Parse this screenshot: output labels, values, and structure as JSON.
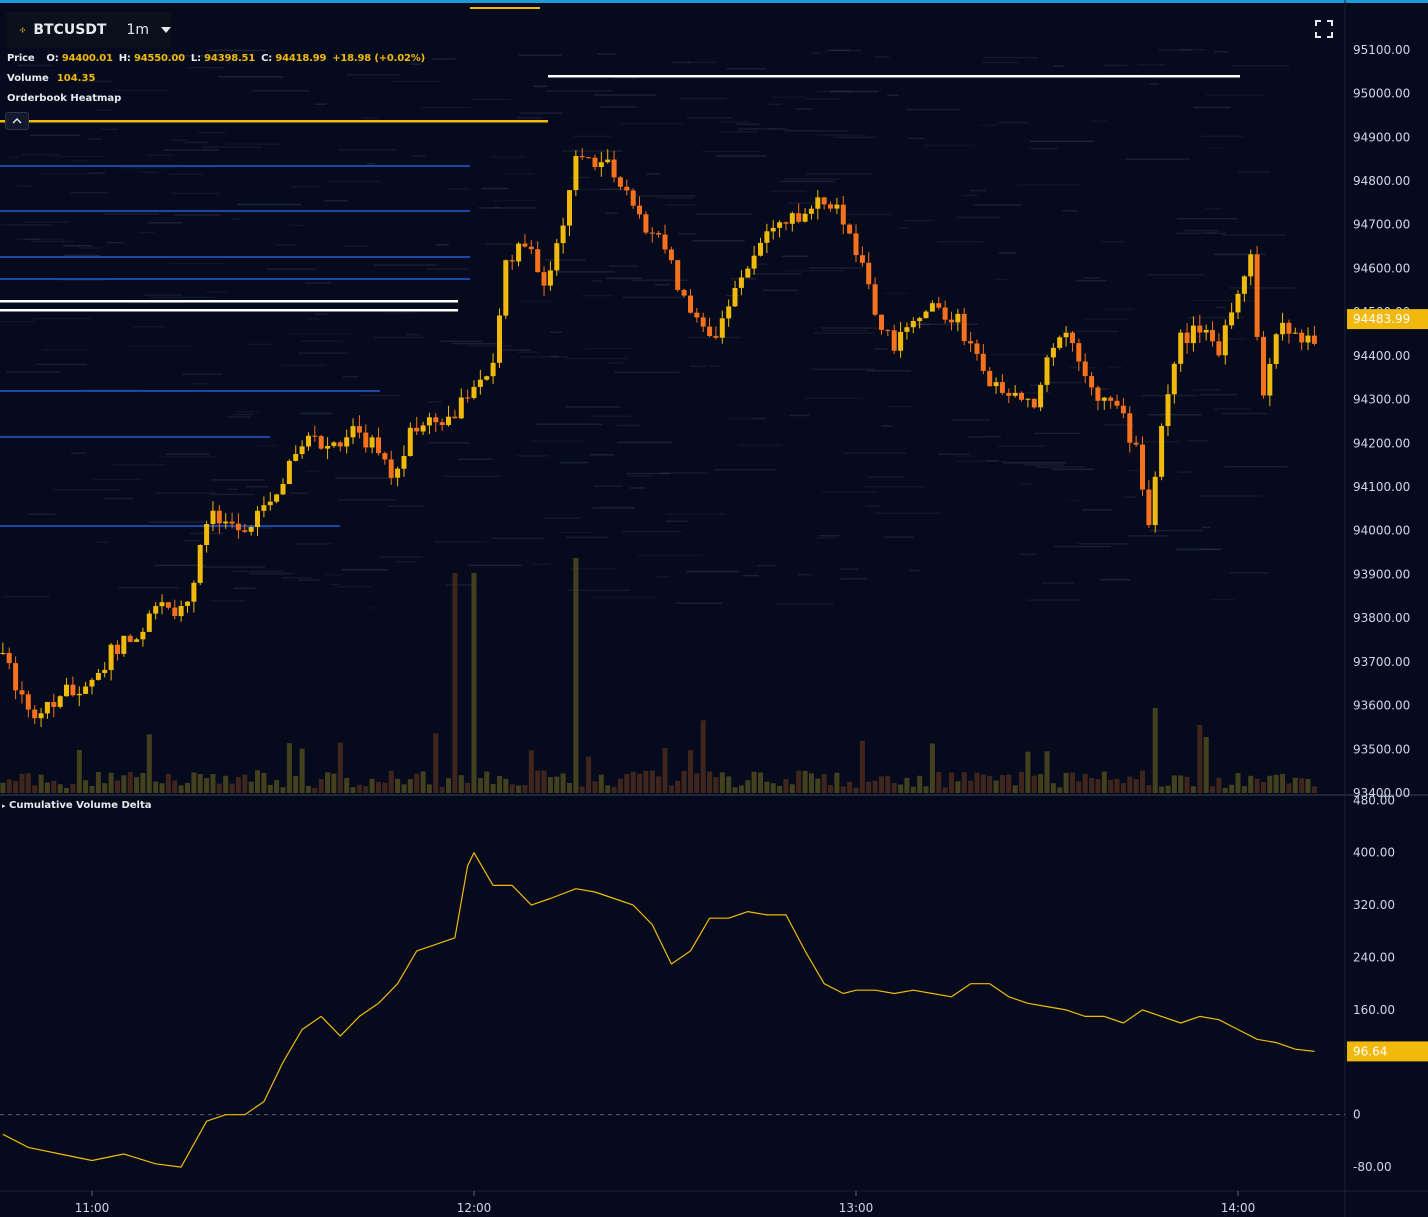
{
  "header": {
    "symbol": "BTCUSDT",
    "interval": "1m",
    "price_label": "Price",
    "ohlc": {
      "o_label": "O:",
      "o": "94400.01",
      "h_label": "H:",
      "h": "94550.00",
      "l_label": "L:",
      "l": "94398.51",
      "c_label": "C:",
      "c": "94418.99",
      "change": "+18.98 (+0.02%)"
    },
    "volume_label": "Volume",
    "volume_value": "104.35",
    "heatmap_label": "Orderbook Heatmap"
  },
  "cvd_label": "Cumulative Volume Delta",
  "icons": {
    "logo": "binance-logo-icon",
    "collapse": "chevron-up-icon",
    "fullscreen": "fullscreen-icon",
    "interval_dropdown": "caret-down-icon"
  },
  "colors": {
    "background": "#050b1c",
    "up": "#f0b90b",
    "down": "#f6711d",
    "accent": "#f0b90b",
    "axis_text": "#cfd6e6",
    "top_bar": "#1c9bd6"
  },
  "chart_data": [
    {
      "type": "candlestick",
      "title": "",
      "y_axis_ticks": [
        "95100.00",
        "95000.00",
        "94900.00",
        "94800.00",
        "94700.00",
        "94600.00",
        "94500.00",
        "94400.00",
        "94300.00",
        "94200.00",
        "94100.00",
        "94000.00",
        "93900.00",
        "93800.00",
        "93700.00",
        "93600.00",
        "93500.00",
        "93400.00"
      ],
      "ylim": [
        93400,
        95150
      ],
      "current_price": "94483.99",
      "x_ticks": [
        "11:00",
        "12:00",
        "13:00",
        "14:00"
      ],
      "x_range": [
        "10:46",
        "14:13"
      ],
      "close_path": [
        [
          "10:46",
          93720
        ],
        [
          "10:48",
          93650
        ],
        [
          "10:50",
          93580
        ],
        [
          "10:53",
          93610
        ],
        [
          "10:56",
          93630
        ],
        [
          "11:00",
          93660
        ],
        [
          "11:03",
          93720
        ],
        [
          "11:07",
          93760
        ],
        [
          "11:10",
          93820
        ],
        [
          "11:14",
          93820
        ],
        [
          "11:16",
          93880
        ],
        [
          "11:18",
          94030
        ],
        [
          "11:21",
          94020
        ],
        [
          "11:24",
          94000
        ],
        [
          "11:27",
          94040
        ],
        [
          "11:30",
          94120
        ],
        [
          "11:34",
          94200
        ],
        [
          "11:38",
          94200
        ],
        [
          "11:41",
          94230
        ],
        [
          "11:44",
          94200
        ],
        [
          "11:47",
          94120
        ],
        [
          "11:50",
          94220
        ],
        [
          "11:53",
          94240
        ],
        [
          "11:57",
          94260
        ],
        [
          "12:00",
          94340
        ],
        [
          "12:03",
          94370
        ],
        [
          "12:05",
          94600
        ],
        [
          "12:08",
          94660
        ],
        [
          "12:11",
          94560
        ],
        [
          "12:13",
          94650
        ],
        [
          "12:16",
          94840
        ],
        [
          "12:18",
          94850
        ],
        [
          "12:21",
          94830
        ],
        [
          "12:24",
          94760
        ],
        [
          "12:27",
          94700
        ],
        [
          "12:30",
          94650
        ],
        [
          "12:32",
          94560
        ],
        [
          "12:35",
          94480
        ],
        [
          "12:38",
          94440
        ],
        [
          "12:40",
          94530
        ],
        [
          "12:43",
          94600
        ],
        [
          "12:46",
          94680
        ],
        [
          "12:49",
          94700
        ],
        [
          "12:52",
          94730
        ],
        [
          "12:55",
          94760
        ],
        [
          "12:58",
          94720
        ],
        [
          "13:00",
          94640
        ],
        [
          "13:03",
          94500
        ],
        [
          "13:06",
          94420
        ],
        [
          "13:09",
          94470
        ],
        [
          "13:11",
          94520
        ],
        [
          "13:14",
          94490
        ],
        [
          "13:16",
          94480
        ],
        [
          "13:19",
          94400
        ],
        [
          "13:22",
          94320
        ],
        [
          "13:25",
          94330
        ],
        [
          "13:28",
          94290
        ],
        [
          "13:30",
          94400
        ],
        [
          "13:33",
          94460
        ],
        [
          "13:35",
          94400
        ],
        [
          "13:38",
          94310
        ],
        [
          "13:41",
          94280
        ],
        [
          "13:44",
          94190
        ],
        [
          "13:46",
          94020
        ],
        [
          "13:48",
          94240
        ],
        [
          "13:51",
          94440
        ],
        [
          "13:54",
          94460
        ],
        [
          "13:57",
          94420
        ],
        [
          "14:00",
          94560
        ],
        [
          "14:02",
          94620
        ],
        [
          "14:04",
          94300
        ],
        [
          "14:06",
          94460
        ],
        [
          "14:09",
          94450
        ],
        [
          "14:12",
          94440
        ]
      ]
    },
    {
      "type": "bar",
      "title": "Volume",
      "last_value": "104.35",
      "highlighted_spikes": [
        {
          "x": "11:57",
          "value": "high"
        },
        {
          "x": "12:00",
          "value": "high"
        },
        {
          "x": "12:16",
          "value": "highest"
        },
        {
          "x": "13:47",
          "value": "medium"
        }
      ]
    },
    {
      "type": "line",
      "title": "Cumulative Volume Delta",
      "y_axis_ticks": [
        "480.00",
        "400.00",
        "320.00",
        "240.00",
        "160.00",
        "0",
        "-80.00"
      ],
      "ylim": [
        -115,
        485
      ],
      "current_value": "96.64",
      "x": [
        "10:46",
        "10:50",
        "10:55",
        "11:00",
        "11:05",
        "11:10",
        "11:14",
        "11:18",
        "11:21",
        "11:24",
        "11:27",
        "11:30",
        "11:33",
        "11:36",
        "11:39",
        "11:42",
        "11:45",
        "11:48",
        "11:51",
        "11:54",
        "11:57",
        "11:59",
        "12:00",
        "12:03",
        "12:06",
        "12:09",
        "12:12",
        "12:16",
        "12:19",
        "12:22",
        "12:25",
        "12:28",
        "12:31",
        "12:34",
        "12:37",
        "12:40",
        "12:43",
        "12:46",
        "12:49",
        "12:52",
        "12:55",
        "12:58",
        "13:00",
        "13:03",
        "13:06",
        "13:09",
        "13:12",
        "13:15",
        "13:18",
        "13:21",
        "13:24",
        "13:27",
        "13:30",
        "13:33",
        "13:36",
        "13:39",
        "13:42",
        "13:45",
        "13:48",
        "13:51",
        "13:54",
        "13:57",
        "14:00",
        "14:03",
        "14:06",
        "14:09",
        "14:12"
      ],
      "values": [
        -30,
        -50,
        -60,
        -70,
        -60,
        -75,
        -80,
        -10,
        0,
        0,
        20,
        80,
        130,
        150,
        120,
        150,
        170,
        200,
        250,
        260,
        270,
        380,
        400,
        350,
        350,
        320,
        330,
        345,
        340,
        330,
        320,
        290,
        230,
        250,
        300,
        300,
        310,
        305,
        305,
        250,
        200,
        185,
        190,
        190,
        185,
        190,
        185,
        180,
        200,
        200,
        180,
        170,
        165,
        160,
        150,
        150,
        140,
        160,
        150,
        140,
        150,
        145,
        130,
        115,
        110,
        100,
        96.64
      ]
    }
  ]
}
